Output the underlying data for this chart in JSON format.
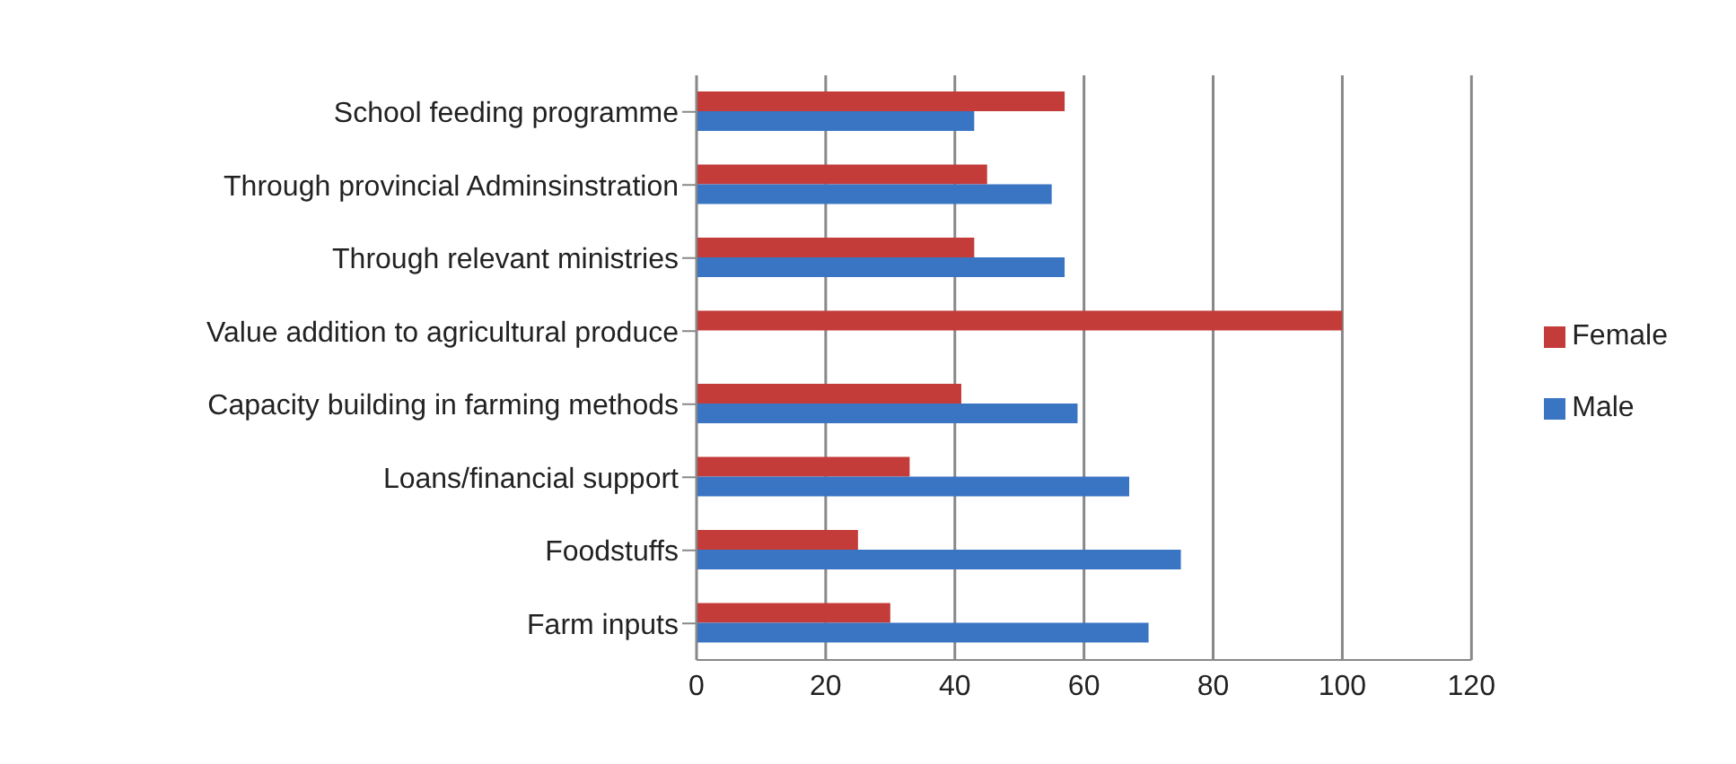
{
  "chart_data": {
    "type": "bar",
    "orientation": "horizontal",
    "categories": [
      "School feeding programme",
      "Through provincial Adminsinstration",
      "Through relevant ministries",
      "Value addition to agricultural produce",
      "Capacity building in farming methods",
      "Loans/financial support",
      "Foodstuffs",
      "Farm inputs"
    ],
    "series": [
      {
        "name": "Female",
        "color": "#c43c3a",
        "values": [
          57,
          45,
          43,
          100,
          41,
          33,
          25,
          30
        ]
      },
      {
        "name": "Male",
        "color": "#3a75c4",
        "values": [
          43,
          55,
          57,
          0,
          59,
          67,
          75,
          70
        ]
      }
    ],
    "xlim": [
      0,
      120
    ],
    "xticks": [
      0,
      20,
      40,
      60,
      80,
      100,
      120
    ],
    "grid": "x",
    "legend": "right"
  }
}
